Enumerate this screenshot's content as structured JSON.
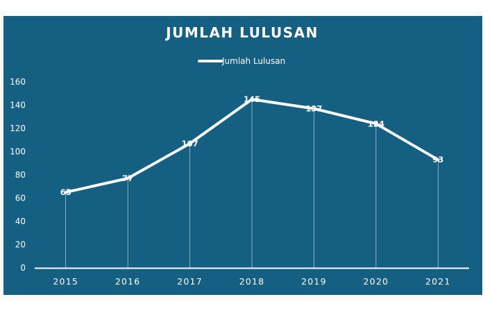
{
  "colors": {
    "background": "#155f82",
    "line": "#ffffff",
    "text": "#ffffff",
    "page": "#ffffff"
  },
  "chart_data": {
    "type": "line",
    "title": "JUMLAH LULUSAN",
    "categories": [
      "2015",
      "2016",
      "2017",
      "2018",
      "2019",
      "2020",
      "2021"
    ],
    "series": [
      {
        "name": "Jumlah Lulusan",
        "values": [
          65,
          77,
          107,
          145,
          137,
          124,
          93
        ]
      }
    ],
    "data_labels": [
      "65",
      "77",
      "107",
      "145",
      "137",
      "124",
      "93"
    ],
    "yticks": [
      "0",
      "20",
      "40",
      "60",
      "80",
      "100",
      "120",
      "140",
      "160"
    ],
    "ylim": [
      0,
      160
    ],
    "grid": false,
    "drop_lines": true,
    "legend_position": "top"
  }
}
